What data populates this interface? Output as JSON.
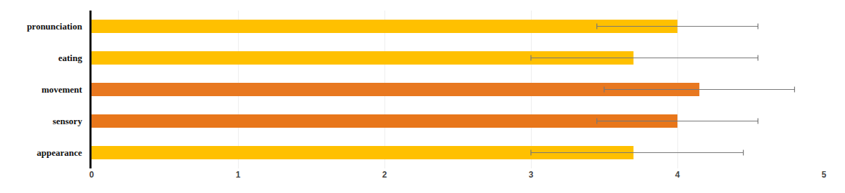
{
  "chart_data": {
    "type": "bar",
    "orientation": "horizontal",
    "categories": [
      "appearance",
      "sensory",
      "movement",
      "eating",
      "pronunciation"
    ],
    "values": [
      3.7,
      4.0,
      4.15,
      3.7,
      4.0
    ],
    "colors": [
      "#FFC000",
      "#E8761A",
      "#E87820",
      "#FFC000",
      "#FFC000"
    ],
    "error_bars": {
      "minus": [
        0.7,
        0.55,
        0.65,
        0.7,
        0.55
      ],
      "plus": [
        0.75,
        0.55,
        0.65,
        0.85,
        0.55
      ],
      "color": "#777777"
    },
    "xlim": [
      0,
      5
    ],
    "xticks": [
      0,
      1,
      2,
      3,
      4,
      5
    ],
    "grid": true
  }
}
